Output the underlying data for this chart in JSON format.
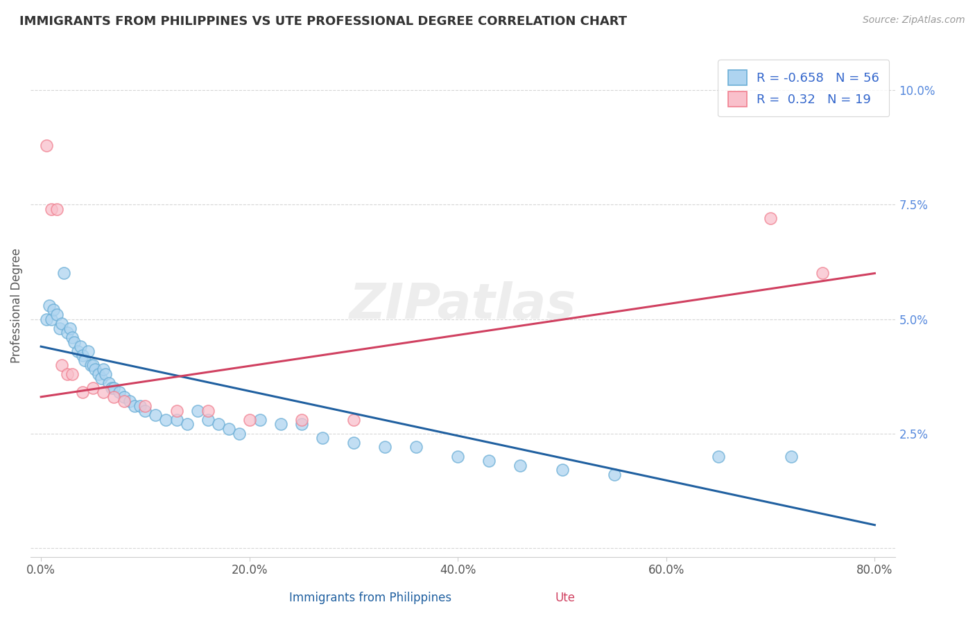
{
  "title": "IMMIGRANTS FROM PHILIPPINES VS UTE PROFESSIONAL DEGREE CORRELATION CHART",
  "source": "Source: ZipAtlas.com",
  "xlabel_blue": "Immigrants from Philippines",
  "xlabel_pink": "Ute",
  "ylabel": "Professional Degree",
  "xlim": [
    -0.01,
    0.82
  ],
  "ylim": [
    -0.002,
    0.108
  ],
  "xticks": [
    0.0,
    0.2,
    0.4,
    0.6,
    0.8
  ],
  "xtick_labels": [
    "0.0%",
    "20.0%",
    "40.0%",
    "60.0%",
    "80.0%"
  ],
  "yticks": [
    0.0,
    0.025,
    0.05,
    0.075,
    0.1
  ],
  "ytick_labels": [
    "",
    "2.5%",
    "5.0%",
    "7.5%",
    "10.0%"
  ],
  "blue_R": -0.658,
  "blue_N": 56,
  "pink_R": 0.32,
  "pink_N": 19,
  "blue_color": "#AED4F0",
  "pink_color": "#F9C0CB",
  "blue_edge_color": "#6BAED6",
  "pink_edge_color": "#F08090",
  "blue_line_color": "#2060A0",
  "pink_line_color": "#D04060",
  "watermark": "ZIPatlas",
  "blue_scatter_x": [
    0.005,
    0.008,
    0.01,
    0.012,
    0.015,
    0.018,
    0.02,
    0.022,
    0.025,
    0.028,
    0.03,
    0.032,
    0.035,
    0.038,
    0.04,
    0.042,
    0.045,
    0.048,
    0.05,
    0.052,
    0.055,
    0.058,
    0.06,
    0.062,
    0.065,
    0.068,
    0.07,
    0.075,
    0.08,
    0.085,
    0.09,
    0.095,
    0.1,
    0.11,
    0.12,
    0.13,
    0.14,
    0.15,
    0.16,
    0.17,
    0.18,
    0.19,
    0.21,
    0.23,
    0.25,
    0.27,
    0.3,
    0.33,
    0.36,
    0.4,
    0.43,
    0.46,
    0.5,
    0.55,
    0.65,
    0.72
  ],
  "blue_scatter_y": [
    0.05,
    0.053,
    0.05,
    0.052,
    0.051,
    0.048,
    0.049,
    0.06,
    0.047,
    0.048,
    0.046,
    0.045,
    0.043,
    0.044,
    0.042,
    0.041,
    0.043,
    0.04,
    0.04,
    0.039,
    0.038,
    0.037,
    0.039,
    0.038,
    0.036,
    0.035,
    0.035,
    0.034,
    0.033,
    0.032,
    0.031,
    0.031,
    0.03,
    0.029,
    0.028,
    0.028,
    0.027,
    0.03,
    0.028,
    0.027,
    0.026,
    0.025,
    0.028,
    0.027,
    0.027,
    0.024,
    0.023,
    0.022,
    0.022,
    0.02,
    0.019,
    0.018,
    0.017,
    0.016,
    0.02,
    0.02
  ],
  "pink_scatter_x": [
    0.005,
    0.01,
    0.015,
    0.02,
    0.025,
    0.03,
    0.04,
    0.05,
    0.06,
    0.07,
    0.08,
    0.1,
    0.13,
    0.16,
    0.2,
    0.25,
    0.3,
    0.7,
    0.75
  ],
  "pink_scatter_y": [
    0.088,
    0.074,
    0.074,
    0.04,
    0.038,
    0.038,
    0.034,
    0.035,
    0.034,
    0.033,
    0.032,
    0.031,
    0.03,
    0.03,
    0.028,
    0.028,
    0.028,
    0.072,
    0.06
  ],
  "blue_line_x0": 0.0,
  "blue_line_y0": 0.044,
  "blue_line_x1": 0.8,
  "blue_line_y1": 0.005,
  "pink_line_x0": 0.0,
  "pink_line_y0": 0.033,
  "pink_line_x1": 0.8,
  "pink_line_y1": 0.06
}
